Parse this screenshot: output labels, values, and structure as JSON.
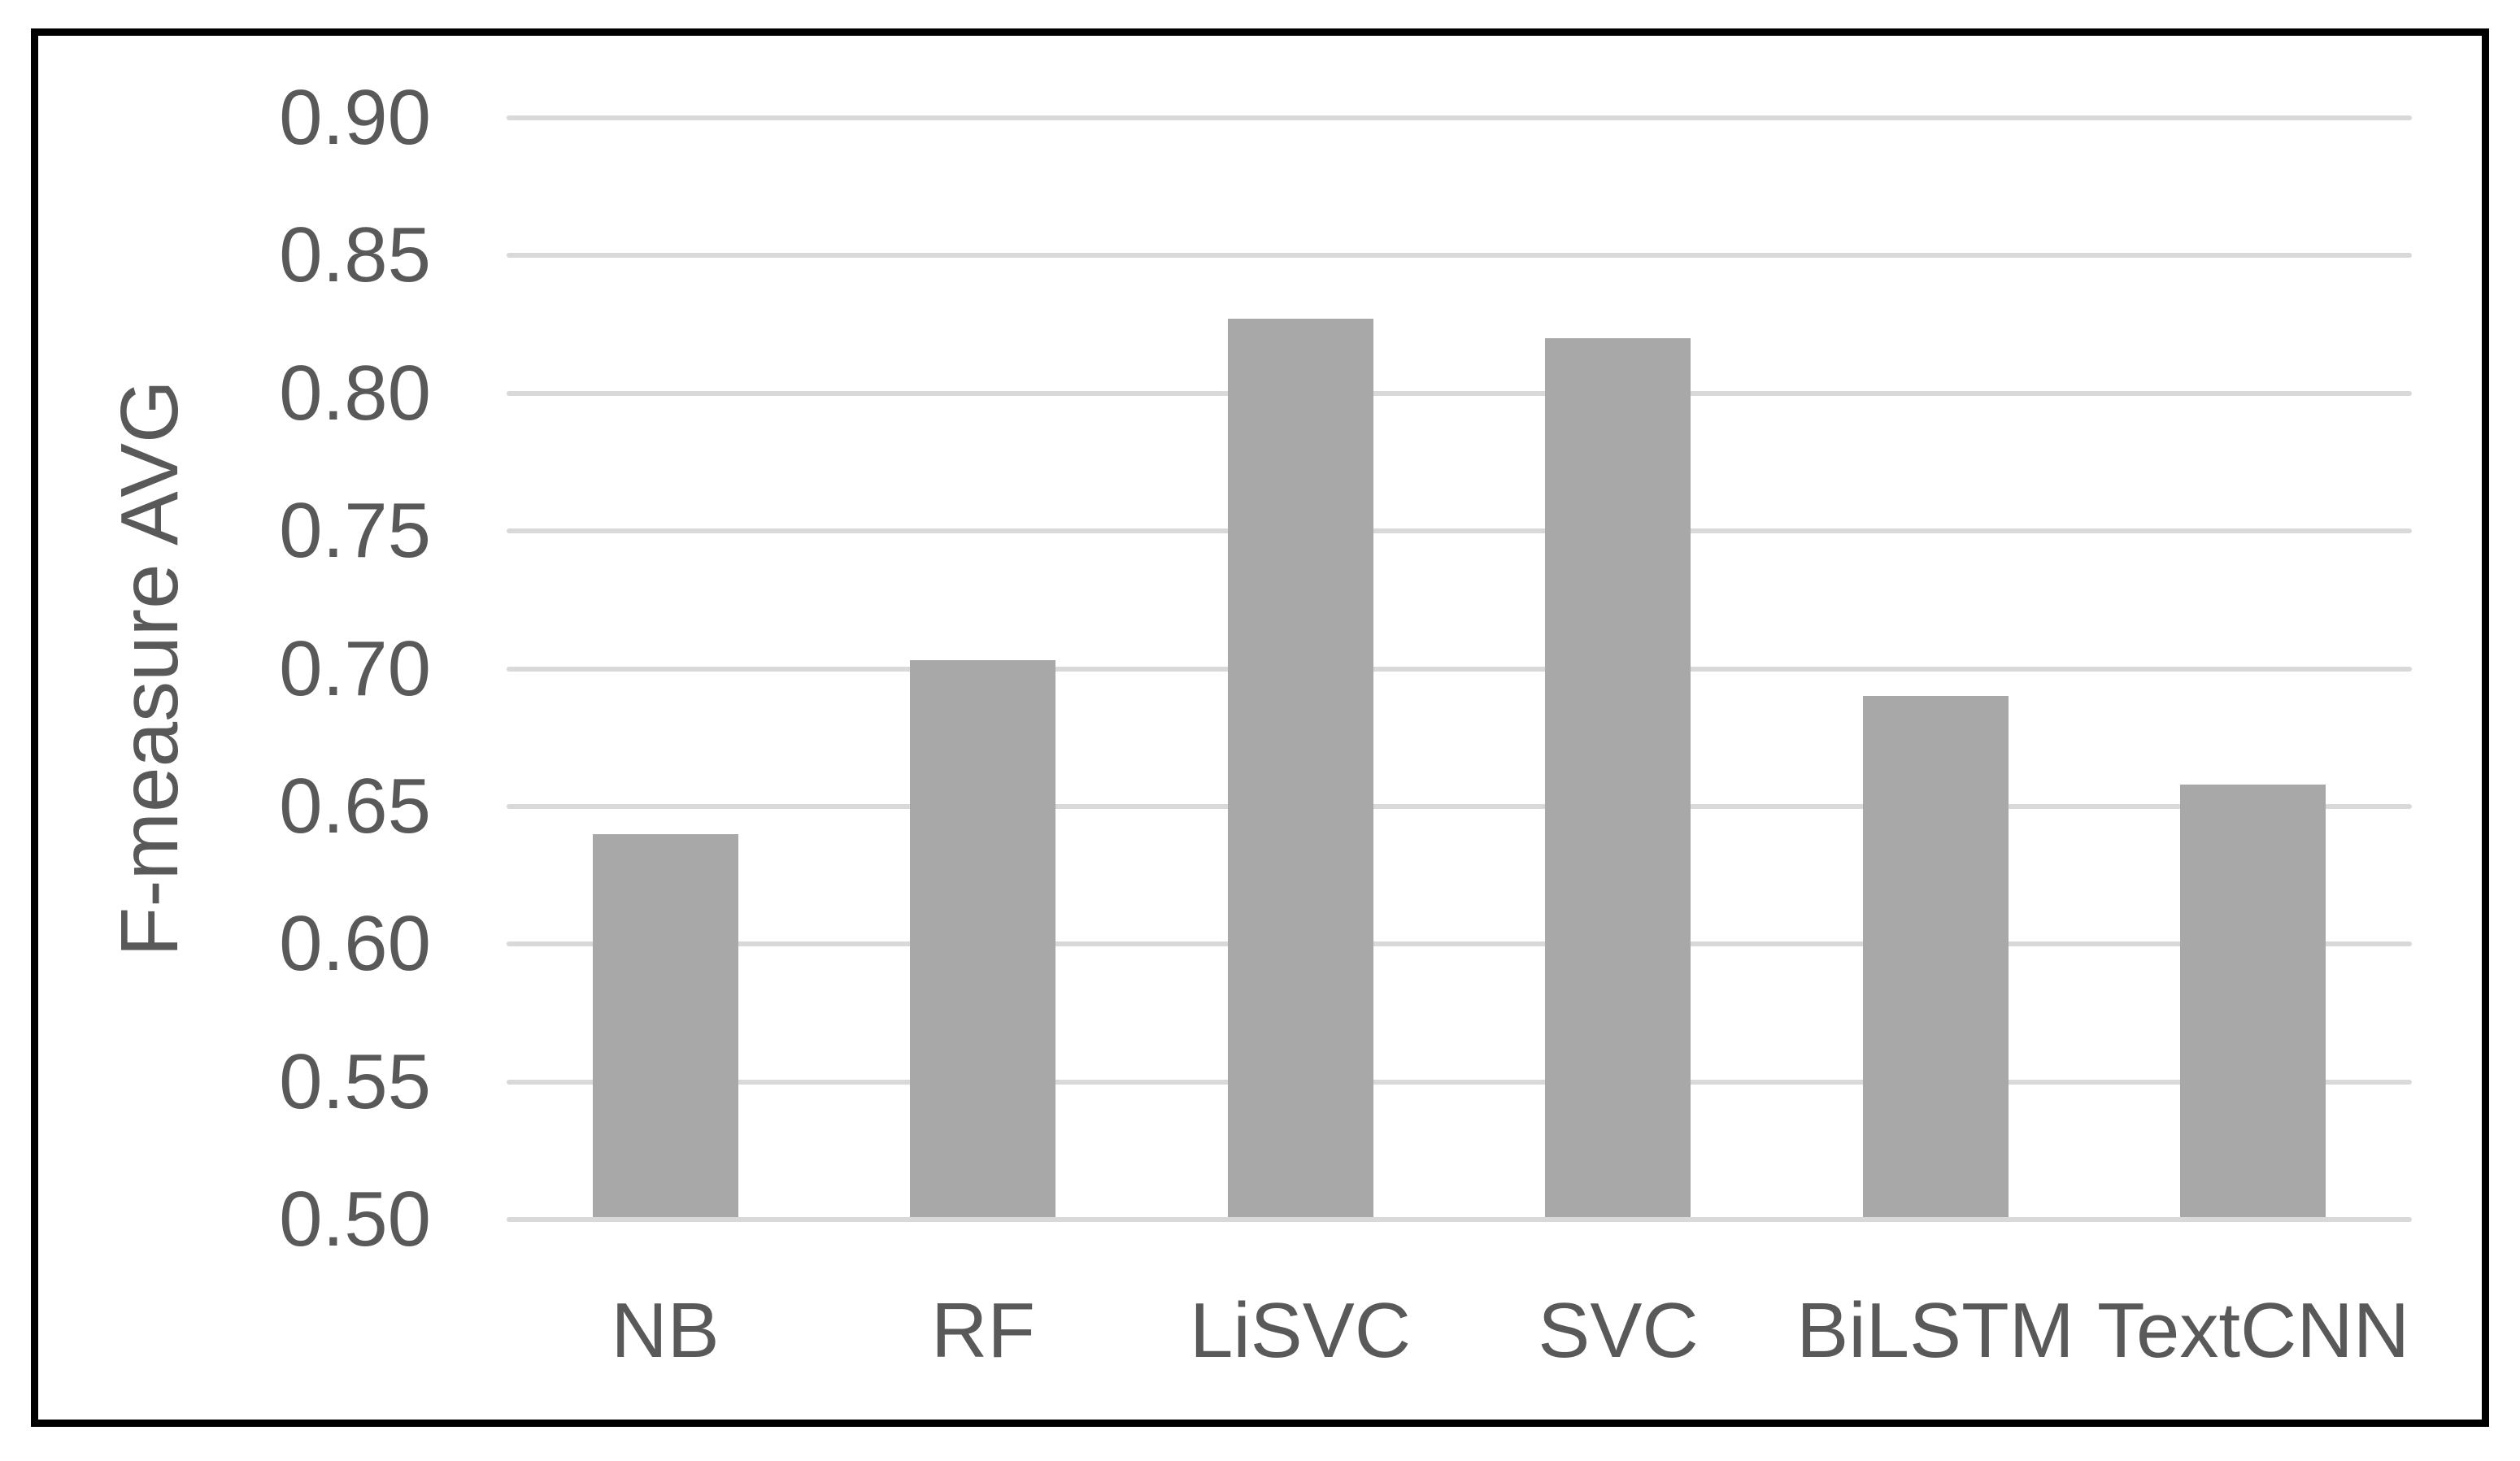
{
  "chart_data": {
    "type": "bar",
    "title": "",
    "ylabel": "F-measure AVG",
    "xlabel": "",
    "categories": [
      "NB",
      "RF",
      "LiSVC",
      "SVC",
      "BiLSTM",
      "TextCNN"
    ],
    "values": [
      0.64,
      0.703,
      0.827,
      0.82,
      0.69,
      0.658
    ],
    "ylim": [
      0.5,
      0.9
    ],
    "ytick_step": 0.05,
    "yticks": [
      "0.90",
      "0.85",
      "0.80",
      "0.75",
      "0.70",
      "0.65",
      "0.60",
      "0.55",
      "0.50"
    ],
    "grid": true,
    "legend": false,
    "colors": {
      "bar": "#a8a8a8",
      "grid": "#d9d9d9",
      "text": "#595959",
      "frame": "#000000",
      "background": "#ffffff"
    }
  }
}
